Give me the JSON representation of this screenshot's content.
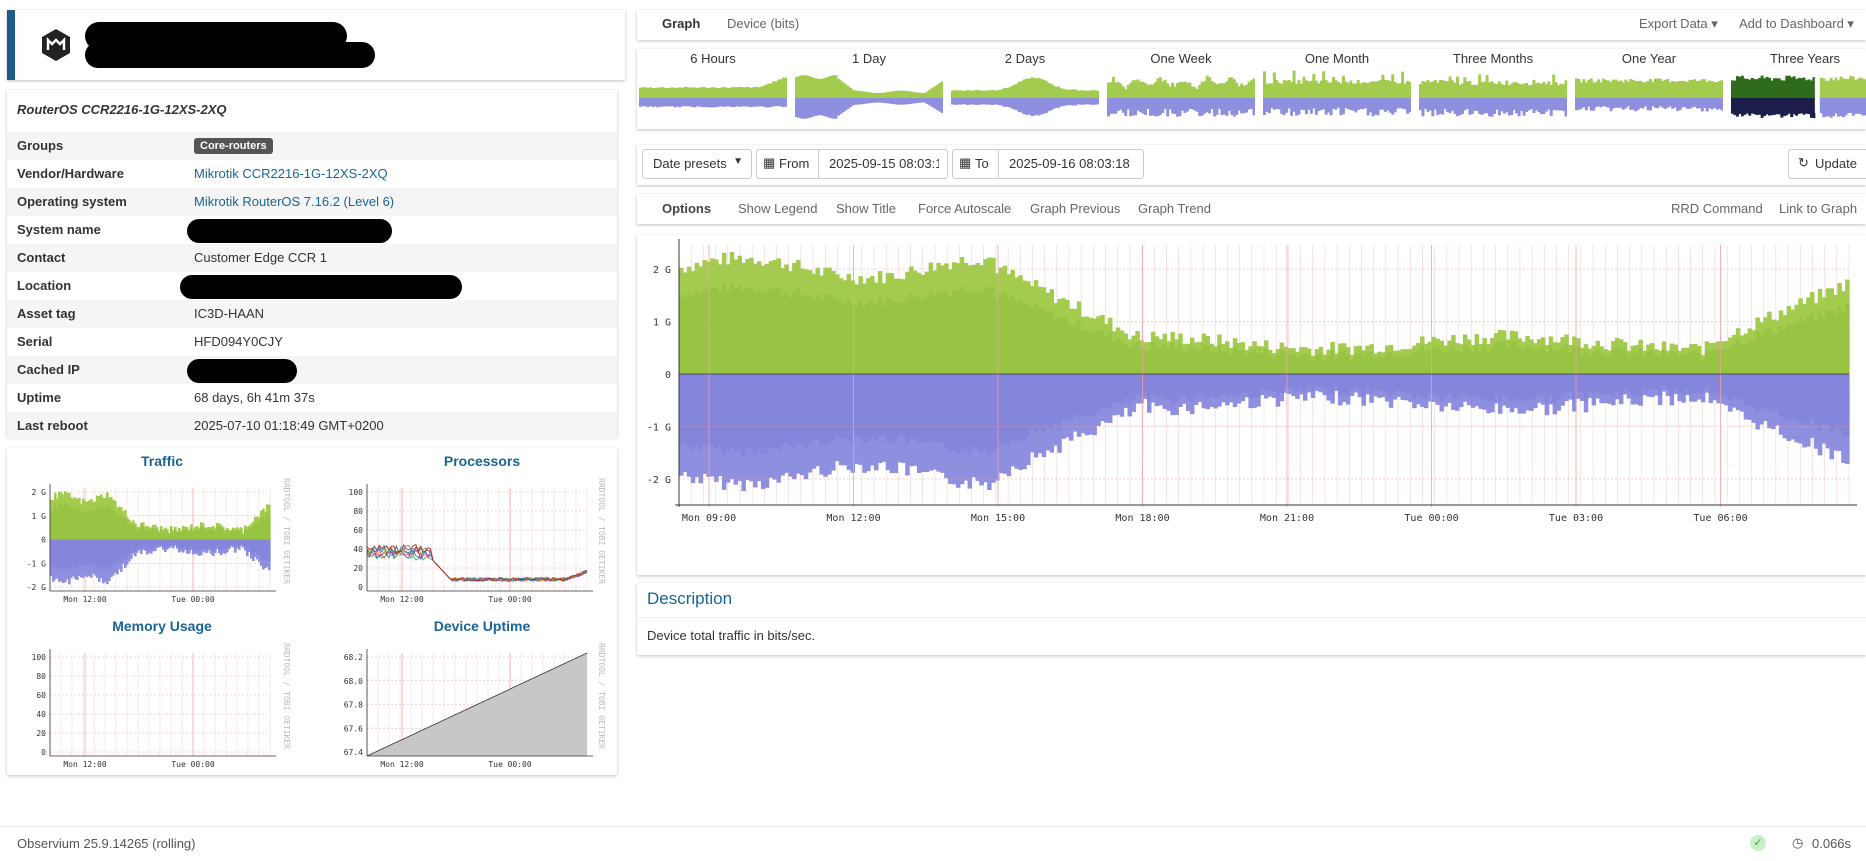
{
  "device": {
    "name_redacted": true,
    "model_title": "RouterOS CCR2216-1G-12XS-2XQ",
    "rows": [
      {
        "label": "Groups",
        "badge": "Core-routers"
      },
      {
        "label": "Vendor/Hardware",
        "value": "Mikrotik CCR2216-1G-12XS-2XQ",
        "link": true
      },
      {
        "label": "Operating system",
        "value": "Mikrotik RouterOS 7.16.2 (Level 6)",
        "link": true
      },
      {
        "label": "System name",
        "redacted": true
      },
      {
        "label": "Contact",
        "value": "Customer Edge CCR 1"
      },
      {
        "label": "Location",
        "redacted": true
      },
      {
        "label": "Asset tag",
        "value": "IC3D-HAAN"
      },
      {
        "label": "Serial",
        "value": "HFD094Y0CJY"
      },
      {
        "label": "Cached IP",
        "redacted": true
      },
      {
        "label": "Uptime",
        "value": "68 days, 6h 41m 37s"
      },
      {
        "label": "Last reboot",
        "value": "2025-07-10 01:18:49 GMT+0200"
      }
    ]
  },
  "minis": {
    "traffic": {
      "title": "Traffic",
      "y_ticks": [
        "2 G",
        "1 G",
        "0",
        "-1 G",
        "-2 G"
      ],
      "x_ticks": [
        "Mon 12:00",
        "Tue 00:00"
      ]
    },
    "processors": {
      "title": "Processors",
      "y_ticks": [
        "100",
        "80",
        "60",
        "40",
        "20",
        "0"
      ],
      "x_ticks": [
        "Mon 12:00",
        "Tue 00:00"
      ]
    },
    "memory": {
      "title": "Memory Usage",
      "y_ticks": [
        "100",
        "80",
        "60",
        "40",
        "20",
        "0"
      ],
      "x_ticks": [
        "Mon 12:00",
        "Tue 00:00"
      ]
    },
    "uptime": {
      "title": "Device Uptime",
      "y_ticks": [
        "68.2",
        "68.0",
        "67.8",
        "67.6",
        "67.4"
      ],
      "x_ticks": [
        "Mon 12:00",
        "Tue 00:00"
      ]
    },
    "watermark": "RRDTOOL / TOBI OETIKER"
  },
  "tabs": {
    "graph": "Graph",
    "device_bits": "Device (bits)",
    "export": "Export Data",
    "add_dashboard": "Add to Dashboard"
  },
  "periods": [
    "6 Hours",
    "1 Day",
    "2 Days",
    "One Week",
    "One Month",
    "Three Months",
    "One Year",
    "Three Years"
  ],
  "dates": {
    "presets": "Date presets",
    "from_label": "From",
    "from_value": "2025-09-15 08:03:1",
    "to_label": "To",
    "to_value": "2025-09-16 08:03:18",
    "update": "Update"
  },
  "options": {
    "title": "Options",
    "items": [
      "Show Legend",
      "Show Title",
      "Force Autoscale",
      "Graph Previous",
      "Graph Trend"
    ],
    "right": [
      "RRD Command",
      "Link to Graph"
    ]
  },
  "main_graph": {
    "y_ticks": [
      "2 G",
      "1 G",
      "0",
      "-1 G",
      "-2 G"
    ],
    "x_ticks": [
      "Mon 09:00",
      "Mon 12:00",
      "Mon 15:00",
      "Mon 18:00",
      "Mon 21:00",
      "Tue 00:00",
      "Tue 03:00",
      "Tue 06:00"
    ]
  },
  "description": {
    "title": "Description",
    "text": "Device total traffic in bits/sec."
  },
  "footer": {
    "version": "Observium 25.9.14265 (rolling)",
    "time": "0.066s"
  },
  "colors": {
    "in": "#a3cc4f",
    "in_dark": "#8dbb3a",
    "out": "#8f8fe0",
    "out_dark": "#7b7bd6",
    "accent": "#1f5b8a"
  }
}
